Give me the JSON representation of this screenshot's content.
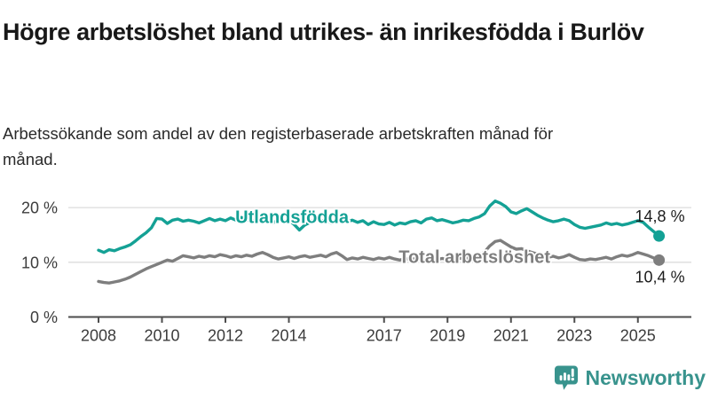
{
  "header": {
    "title": "Högre arbetslöshet bland utrikes- än inrikesfödda i Burlöv",
    "subtitle": "Arbetssökande som andel av den registerbaserade arbetskraften månad för månad."
  },
  "chart_data": {
    "type": "line",
    "title": "Högre arbetslöshet bland utrikes- än inrikesfödda i Burlöv",
    "xlabel": "",
    "ylabel": "",
    "x0": 2008.0,
    "dx": 0.1666667,
    "xlim": [
      2007.6,
      2026.2
    ],
    "ylim": [
      0,
      24
    ],
    "grid": "horizontal",
    "legend_position": "inline-on-lines",
    "x_ticks": [
      "2008",
      "2010",
      "2012",
      "2014",
      "2017",
      "2019",
      "2021",
      "2023",
      "2025"
    ],
    "y_ticks": [
      {
        "value": 0,
        "label": "0 %"
      },
      {
        "value": 10,
        "label": "10 %"
      },
      {
        "value": 20,
        "label": "20 %"
      }
    ],
    "series": [
      {
        "name": "Utlandsfödda",
        "color": "#14a195",
        "end_label": "14,8 %",
        "last_value": 14.8,
        "values": [
          12.2,
          11.8,
          12.3,
          12.1,
          12.5,
          12.8,
          13.2,
          13.9,
          14.7,
          15.4,
          16.3,
          18.0,
          17.9,
          17.1,
          17.7,
          17.9,
          17.5,
          17.7,
          17.5,
          17.2,
          17.6,
          18.0,
          17.6,
          17.9,
          17.6,
          18.1,
          17.7,
          18.2,
          17.8,
          17.5,
          17.9,
          18.3,
          17.6,
          17.2,
          17.8,
          17.5,
          17.7,
          16.9,
          15.9,
          16.8,
          17.3,
          17.9,
          17.5,
          17.8,
          17.2,
          17.6,
          17.9,
          17.4,
          17.7,
          17.3,
          17.6,
          16.9,
          17.4,
          17.0,
          16.9,
          17.3,
          16.8,
          17.2,
          17.0,
          17.4,
          17.6,
          17.2,
          17.9,
          18.1,
          17.6,
          17.8,
          17.5,
          17.2,
          17.4,
          17.7,
          17.6,
          18.0,
          18.3,
          18.9,
          20.3,
          21.2,
          20.8,
          20.2,
          19.2,
          18.9,
          19.4,
          19.8,
          19.2,
          18.6,
          18.1,
          17.7,
          17.4,
          17.6,
          17.9,
          17.6,
          16.9,
          16.4,
          16.2,
          16.4,
          16.6,
          16.8,
          17.2,
          16.9,
          17.1,
          16.8,
          17.0,
          17.3,
          17.6,
          17.3,
          16.4,
          15.6,
          14.8
        ]
      },
      {
        "name": "Total arbetslöshet",
        "color": "#7e7e7e",
        "end_label": "10,4 %",
        "last_value": 10.4,
        "values": [
          6.5,
          6.3,
          6.2,
          6.4,
          6.6,
          6.9,
          7.3,
          7.8,
          8.3,
          8.8,
          9.2,
          9.6,
          10.0,
          10.4,
          10.2,
          10.7,
          11.2,
          11.0,
          10.8,
          11.1,
          10.9,
          11.2,
          11.0,
          11.4,
          11.2,
          10.9,
          11.2,
          11.0,
          11.3,
          11.1,
          11.5,
          11.8,
          11.4,
          10.9,
          10.6,
          10.8,
          11.0,
          10.7,
          11.0,
          11.2,
          10.9,
          11.1,
          11.3,
          11.0,
          11.5,
          11.8,
          11.2,
          10.5,
          10.8,
          10.6,
          10.9,
          10.7,
          10.5,
          10.8,
          10.6,
          10.9,
          10.6,
          10.4,
          10.7,
          10.5,
          10.7,
          10.4,
          10.6,
          10.8,
          10.5,
          10.7,
          10.5,
          10.8,
          10.6,
          10.9,
          10.7,
          11.0,
          11.3,
          11.9,
          13.0,
          13.8,
          14.0,
          13.4,
          12.8,
          12.4,
          12.5,
          12.1,
          11.8,
          11.5,
          11.2,
          10.9,
          11.1,
          10.8,
          11.0,
          11.4,
          10.9,
          10.5,
          10.4,
          10.6,
          10.5,
          10.7,
          10.9,
          10.6,
          11.0,
          11.3,
          11.1,
          11.4,
          11.8,
          11.5,
          11.2,
          10.8,
          10.4
        ]
      }
    ]
  },
  "footer": {
    "brand": "Newsworthy",
    "brand_color": "#38938d",
    "logo_icon": "bar-chart-speech-bubble"
  },
  "colors": {
    "accent_teal": "#14a195",
    "series_gray": "#7e7e7e",
    "gridline": "#dcdcdc",
    "axis": "#4d4d4d",
    "text_dark": "#181818"
  }
}
